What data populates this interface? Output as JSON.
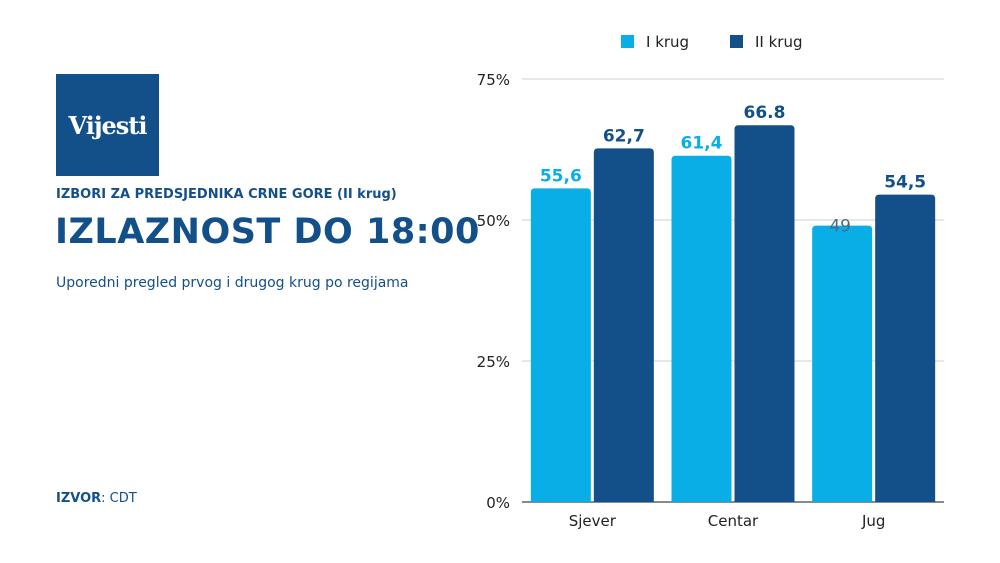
{
  "logo": {
    "text": "Vijesti",
    "color": "#13508a"
  },
  "header": {
    "kicker": "IZBORI ZA PREDSJEDNIKA CRNE GORE (II krug)",
    "title": "IZLAZNOST DO 18:00",
    "subtitle": "Uporedni pregled prvog i drugog krug po regijama"
  },
  "source": {
    "label": "IZVOR",
    "value": ": CDT"
  },
  "chart_data": {
    "type": "bar",
    "categories": [
      "Sjever",
      "Centar",
      "Jug"
    ],
    "series": [
      {
        "name": "I krug",
        "color": "#0aaee6",
        "values": [
          55.6,
          61.4,
          49
        ],
        "labels": [
          "55,6",
          "61,4",
          "49"
        ]
      },
      {
        "name": "II krug",
        "color": "#13508a",
        "values": [
          62.7,
          66.8,
          54.5
        ],
        "labels": [
          "62,7",
          "66.8",
          "54,5"
        ]
      }
    ],
    "yticks": [
      0,
      25,
      50,
      75
    ],
    "ytick_labels": [
      "0%",
      "25%",
      "50%",
      "75%"
    ],
    "ylim": [
      0,
      75
    ],
    "grid": true,
    "legend": "top"
  }
}
